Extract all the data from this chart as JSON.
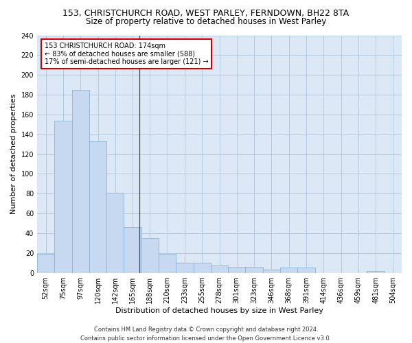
{
  "title": "153, CHRISTCHURCH ROAD, WEST PARLEY, FERNDOWN, BH22 8TA",
  "subtitle": "Size of property relative to detached houses in West Parley",
  "xlabel": "Distribution of detached houses by size in West Parley",
  "ylabel": "Number of detached properties",
  "bar_color": "#c6d9f0",
  "bar_edge_color": "#8ab4d8",
  "background_color": "#ffffff",
  "plot_bg_color": "#dce8f5",
  "grid_color": "#b0c4d8",
  "categories": [
    "52sqm",
    "75sqm",
    "97sqm",
    "120sqm",
    "142sqm",
    "165sqm",
    "188sqm",
    "210sqm",
    "233sqm",
    "255sqm",
    "278sqm",
    "301sqm",
    "323sqm",
    "346sqm",
    "368sqm",
    "391sqm",
    "414sqm",
    "436sqm",
    "459sqm",
    "481sqm",
    "504sqm"
  ],
  "values": [
    19,
    154,
    185,
    133,
    81,
    46,
    35,
    19,
    10,
    10,
    7,
    6,
    6,
    3,
    5,
    5,
    0,
    0,
    0,
    2,
    0
  ],
  "ylim": [
    0,
    240
  ],
  "yticks": [
    0,
    20,
    40,
    60,
    80,
    100,
    120,
    140,
    160,
    180,
    200,
    220,
    240
  ],
  "annotation_line1": "153 CHRISTCHURCH ROAD: 174sqm",
  "annotation_line2": "← 83% of detached houses are smaller (588)",
  "annotation_line3": "17% of semi-detached houses are larger (121) →",
  "annotation_box_color": "#ffffff",
  "annotation_edge_color": "#cc0000",
  "footer": "Contains HM Land Registry data © Crown copyright and database right 2024.\nContains public sector information licensed under the Open Government Licence v3.0.",
  "vline_color": "#444444",
  "title_fontsize": 9,
  "subtitle_fontsize": 8.5,
  "xlabel_fontsize": 8,
  "ylabel_fontsize": 8,
  "tick_fontsize": 7,
  "annotation_fontsize": 7,
  "footer_fontsize": 6
}
